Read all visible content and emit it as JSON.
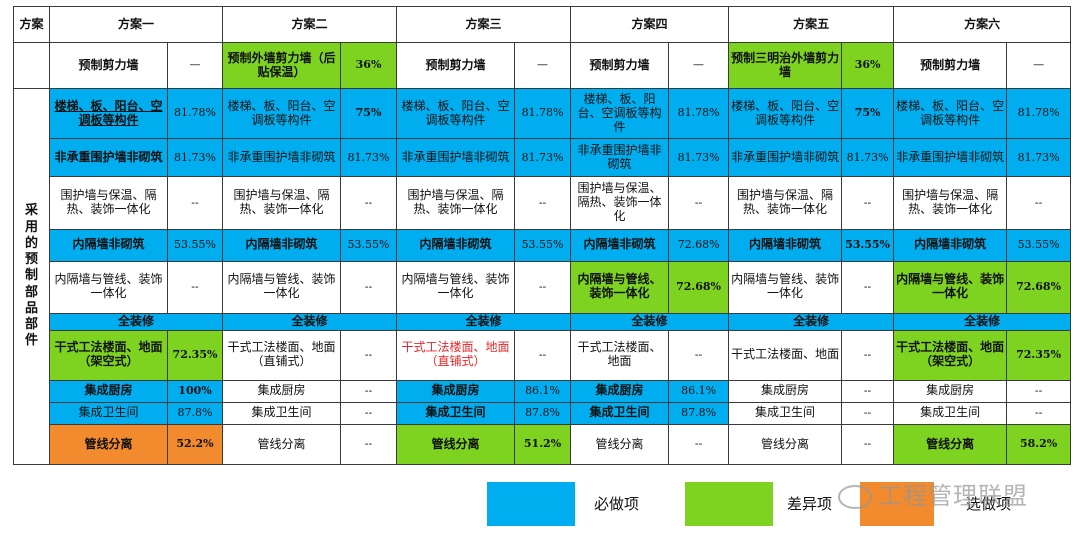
{
  "colors": {
    "must": "#00aeef",
    "diff": "#7ed321",
    "optional": "#f28a2e"
  },
  "corner": "方案",
  "headers": [
    "方案一",
    "方案二",
    "方案三",
    "方案四",
    "方案五",
    "方案六"
  ],
  "walls": [
    {
      "name": "预制剪力墙",
      "pct": "—"
    },
    {
      "name": "预制外墙剪力墙（后贴保温）",
      "pct": "36%"
    },
    {
      "name": "预制剪力墙",
      "pct": "—"
    },
    {
      "name": "预制剪力墙",
      "pct": "—"
    },
    {
      "name": "预制三明治外墙剪力墙",
      "pct": "36%"
    },
    {
      "name": "预制剪力墙",
      "pct": "—"
    }
  ],
  "side_label": "采用的预制部品部件",
  "rows": {
    "r1": [
      {
        "name": "楼梯、板、阳台、空调板等构件",
        "pct": "81.78%"
      },
      {
        "name": "楼梯、板、阳台、空调板等构件",
        "pct": "75%"
      },
      {
        "name": "楼梯、板、阳台、空调板等构件",
        "pct": "81.78%"
      },
      {
        "name": "楼梯、板、阳台、空调板等构件",
        "pct": "81.78%"
      },
      {
        "name": "楼梯、板、阳台、空调板等构件",
        "pct": "75%"
      },
      {
        "name": "楼梯、板、阳台、空调板等构件",
        "pct": "81.78%"
      }
    ],
    "r2": [
      {
        "name": "非承重围护墙非砌筑",
        "pct": "81.73%"
      },
      {
        "name": "非承重围护墙非砌筑",
        "pct": "81.73%"
      },
      {
        "name": "非承重围护墙非砌筑",
        "pct": "81.73%"
      },
      {
        "name": "非承重围护墙非砌筑",
        "pct": "81.73%"
      },
      {
        "name": "非承重围护墙非砌筑",
        "pct": "81.73%"
      },
      {
        "name": "非承重围护墙非砌筑",
        "pct": "81.73%"
      }
    ],
    "r3": [
      {
        "name": "围护墙与保温、隔热、装饰一体化",
        "pct": "--"
      },
      {
        "name": "围护墙与保温、隔热、装饰一体化",
        "pct": "--"
      },
      {
        "name": "围护墙与保温、隔热、装饰一体化",
        "pct": "--"
      },
      {
        "name": "围护墙与保温、隔热、装饰一体化",
        "pct": "--"
      },
      {
        "name": "围护墙与保温、隔热、装饰一体化",
        "pct": "--"
      },
      {
        "name": "围护墙与保温、隔热、装饰一体化",
        "pct": "--"
      }
    ],
    "r4": [
      {
        "name": "内隔墙非砌筑",
        "pct": "53.55%"
      },
      {
        "name": "内隔墙非砌筑",
        "pct": "53.55%"
      },
      {
        "name": "内隔墙非砌筑",
        "pct": "53.55%"
      },
      {
        "name": "内隔墙非砌筑",
        "pct": "72.68%"
      },
      {
        "name": "内隔墙非砌筑",
        "pct": "53.55%"
      },
      {
        "name": "内隔墙非砌筑",
        "pct": "53.55%"
      }
    ],
    "r5": [
      {
        "name": "内隔墙与管线、装饰一体化",
        "pct": "--"
      },
      {
        "name": "内隔墙与管线、装饰一体化",
        "pct": "--"
      },
      {
        "name": "内隔墙与管线、装饰一体化",
        "pct": "--"
      },
      {
        "name": "内隔墙与管线、装饰一体化",
        "pct": "72.68%"
      },
      {
        "name": "内隔墙与管线、装饰一体化",
        "pct": "--"
      },
      {
        "name": "内隔墙与管线、装饰一体化",
        "pct": "72.68%"
      }
    ],
    "r6": [
      "全装修",
      "全装修",
      "全装修",
      "全装修",
      "全装修",
      "全装修"
    ],
    "r7": [
      {
        "name": "干式工法楼面、地面（架空式）",
        "pct": "72.35%"
      },
      {
        "name": "干式工法楼面、地面（直铺式）",
        "pct": "--"
      },
      {
        "name": "干式工法楼面、地面（直铺式）",
        "pct": "--"
      },
      {
        "name": "干式工法楼面、地面",
        "pct": "--"
      },
      {
        "name": "干式工法楼面、地面",
        "pct": "--"
      },
      {
        "name": "干式工法楼面、地面（架空式）",
        "pct": "72.35%"
      }
    ],
    "r8": [
      {
        "name": "集成厨房",
        "pct": "100%"
      },
      {
        "name": "集成厨房",
        "pct": "--"
      },
      {
        "name": "集成厨房",
        "pct": "86.1%"
      },
      {
        "name": "集成厨房",
        "pct": "86.1%"
      },
      {
        "name": "集成厨房",
        "pct": "--"
      },
      {
        "name": "集成厨房",
        "pct": "--"
      }
    ],
    "r9": [
      {
        "name": "集成卫生间",
        "pct": "87.8%"
      },
      {
        "name": "集成卫生间",
        "pct": "--"
      },
      {
        "name": "集成卫生间",
        "pct": "87.8%"
      },
      {
        "name": "集成卫生间",
        "pct": "87.8%"
      },
      {
        "name": "集成卫生间",
        "pct": "--"
      },
      {
        "name": "集成卫生间",
        "pct": "--"
      }
    ],
    "r10": [
      {
        "name": "管线分离",
        "pct": "52.2%"
      },
      {
        "name": "管线分离",
        "pct": "--"
      },
      {
        "name": "管线分离",
        "pct": "51.2%"
      },
      {
        "name": "管线分离",
        "pct": "--"
      },
      {
        "name": "管线分离",
        "pct": "--"
      },
      {
        "name": "管线分离",
        "pct": "58.2%"
      }
    ]
  },
  "legend": {
    "must": "必做项",
    "diff": "差异项",
    "optional": "选做项"
  },
  "watermark": "工程管理联盟"
}
